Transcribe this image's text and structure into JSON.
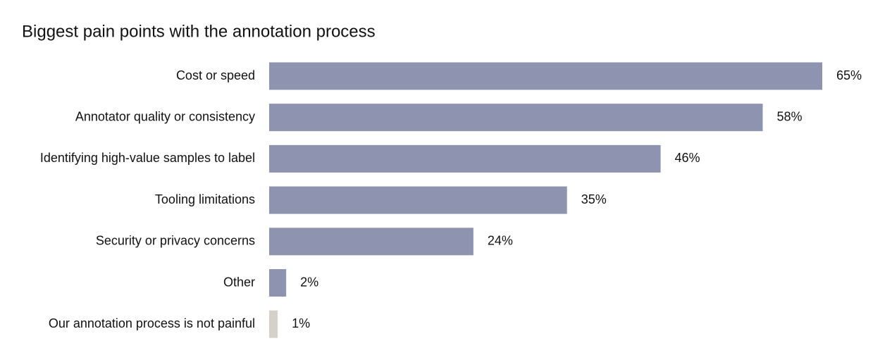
{
  "chart_data": {
    "type": "bar",
    "orientation": "horizontal",
    "title": "Biggest pain points with the annotation process",
    "categories": [
      "Cost or speed",
      "Annotator quality or consistency",
      "Identifying high-value samples to label",
      "Tooling limitations",
      "Security or privacy concerns",
      "Other",
      "Our annotation process is not painful"
    ],
    "values": [
      65,
      58,
      46,
      35,
      24,
      2,
      1
    ],
    "value_labels": [
      "65%",
      "58%",
      "46%",
      "35%",
      "24%",
      "2%",
      "1%"
    ],
    "colors": [
      "#8e93b0",
      "#8e93b0",
      "#8e93b0",
      "#8e93b0",
      "#8e93b0",
      "#8e93b0",
      "#d6d0cb"
    ]
  }
}
